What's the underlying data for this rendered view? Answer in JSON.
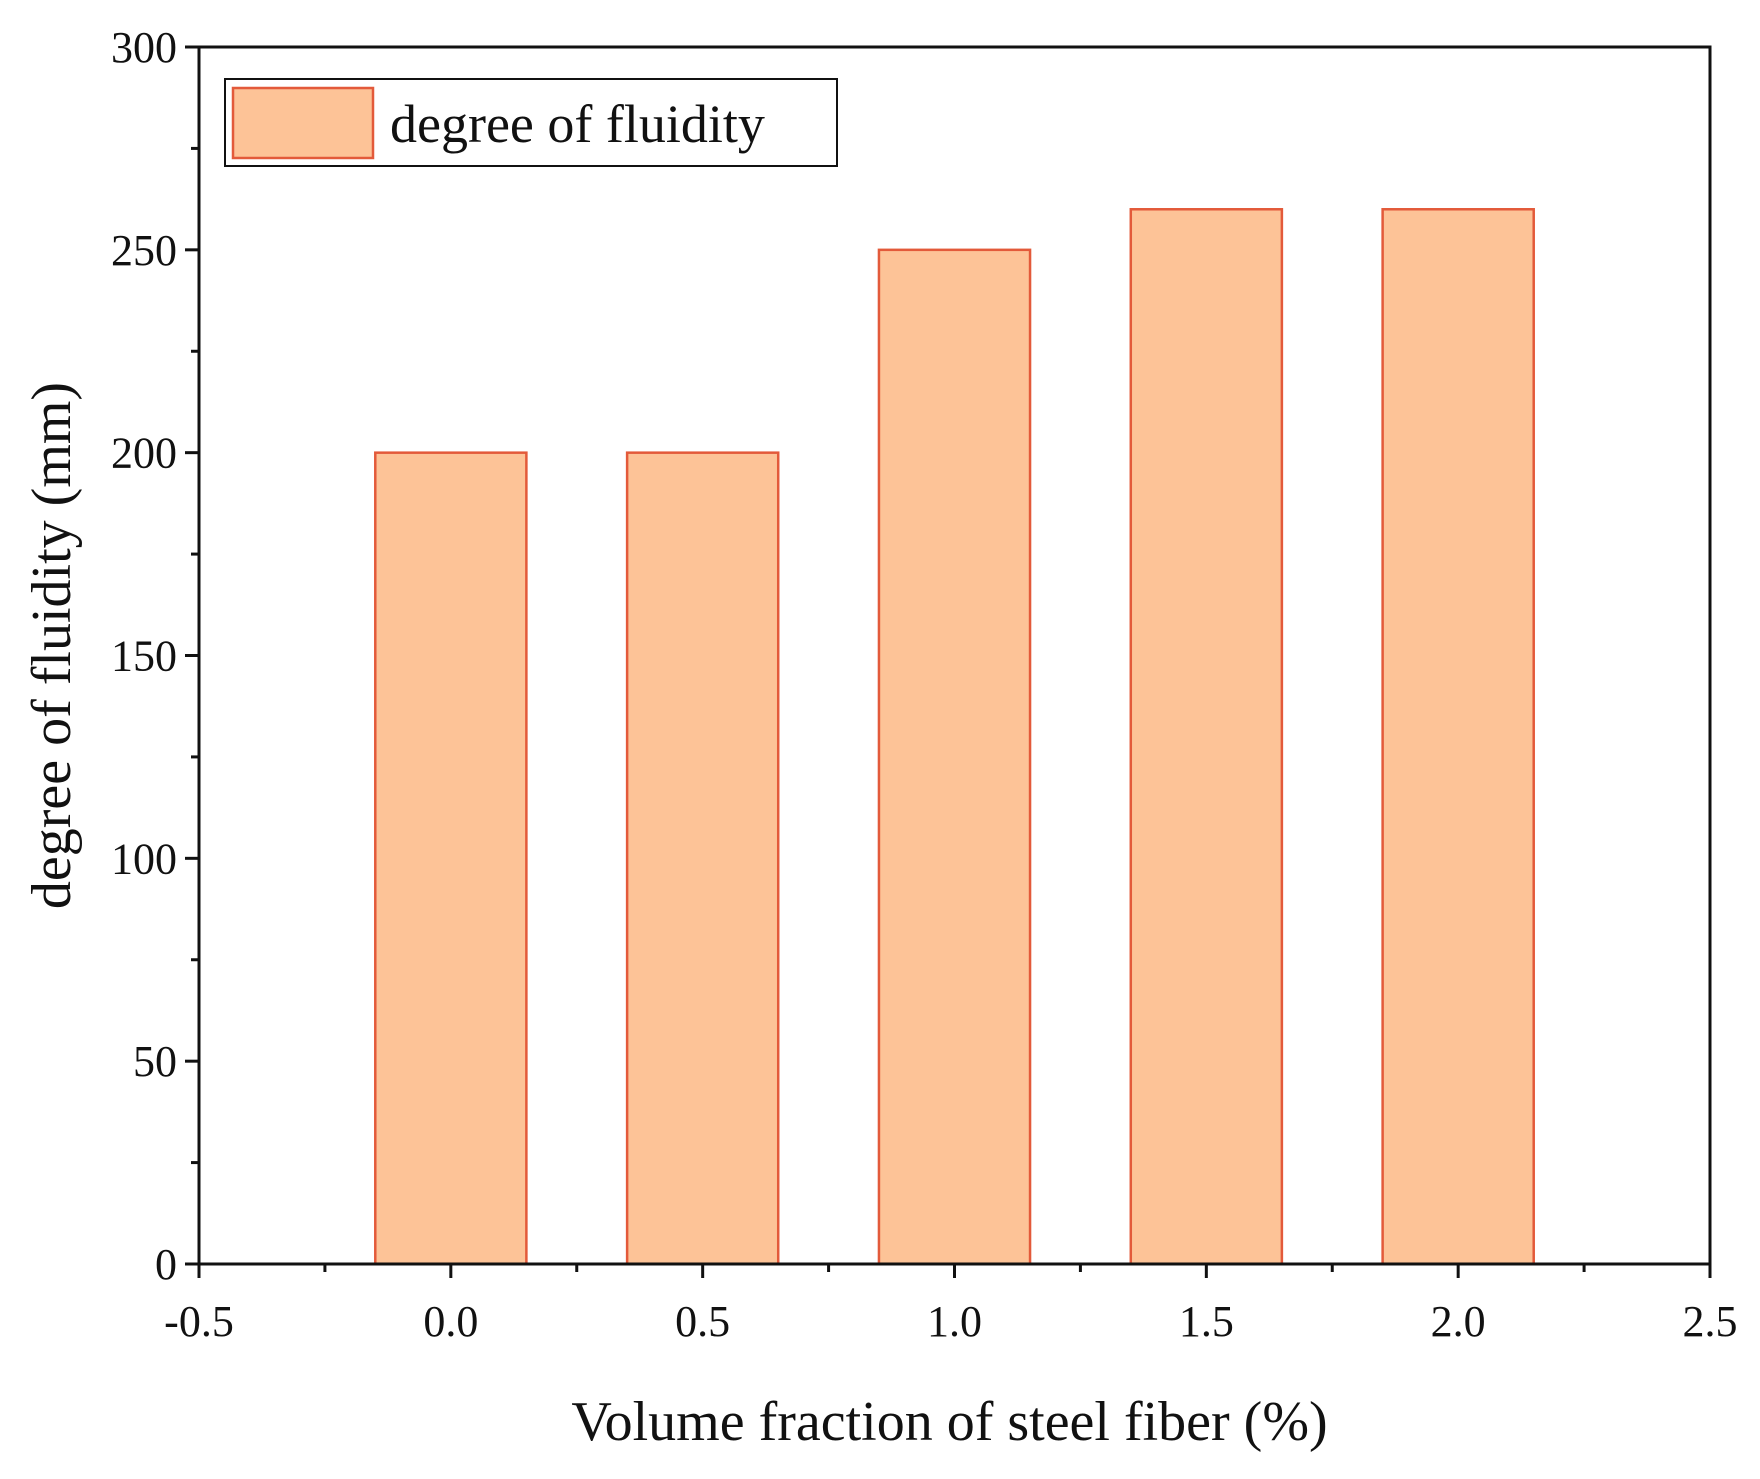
{
  "chart_data": {
    "type": "bar",
    "title": "",
    "xlabel": "Volume fraction of steel fiber (%)",
    "ylabel": "degree of fluidity (mm)",
    "x": [
      0.0,
      0.5,
      1.0,
      1.5,
      2.0
    ],
    "values": [
      200,
      200,
      250,
      260,
      260
    ],
    "bar_width": 0.3,
    "xlim": [
      -0.5,
      2.5
    ],
    "ylim": [
      0,
      300
    ],
    "xticks": [
      -0.5,
      0.0,
      0.5,
      1.0,
      1.5,
      2.0,
      2.5
    ],
    "xtick_labels": [
      "-0.5",
      "0.0",
      "0.5",
      "1.0",
      "1.5",
      "2.0",
      "2.5"
    ],
    "yticks": [
      0,
      50,
      100,
      150,
      200,
      250,
      300
    ],
    "ytick_labels": [
      "0",
      "50",
      "100",
      "150",
      "200",
      "250",
      "300"
    ],
    "grid": false,
    "legend": {
      "position": "top-left",
      "entries": [
        {
          "name": "degree of fluidity"
        }
      ]
    },
    "colors": {
      "bar_fill": "#FDC397",
      "bar_edge": "#E35A3A",
      "axis": "#111111"
    }
  }
}
